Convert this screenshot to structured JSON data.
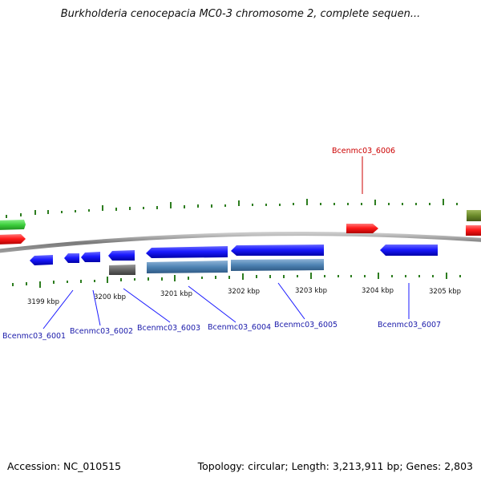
{
  "title": "Burkholderia cenocepacia MC0-3 chromosome 2, complete sequen...",
  "footer": {
    "accession": "Accession: NC_010515",
    "info": "Topology: circular; Length: 3,213,911 bp; Genes: 2,803"
  },
  "colors": {
    "backbone": "#8a8a8a",
    "tick": "#2d7d1f",
    "forward_gene": "#ff1a1a",
    "reverse_gene": "#1a1aff",
    "cds_feature": "#4f84b4",
    "other_feature": "#666666",
    "rna_feature": "#3dcf3d",
    "misc_feature": "#6a8a2a",
    "reverse_label": "#1a1aaa",
    "forward_label": "#cc0000"
  },
  "axis": {
    "ticks_kbp": [
      "3199 kbp",
      "3200 kbp",
      "3201 kbp",
      "3202 kbp",
      "3203 kbp",
      "3204 kbp",
      "3205 kbp"
    ]
  },
  "gene_labels": [
    {
      "text": "Bcenmc03_6001",
      "strand": "reverse"
    },
    {
      "text": "Bcenmc03_6002",
      "strand": "reverse"
    },
    {
      "text": "Bcenmc03_6003",
      "strand": "reverse"
    },
    {
      "text": "Bcenmc03_6004",
      "strand": "reverse"
    },
    {
      "text": "Bcenmc03_6005",
      "strand": "reverse"
    },
    {
      "text": "Bcenmc03_6006",
      "strand": "forward"
    },
    {
      "text": "Bcenmc03_6007",
      "strand": "reverse"
    }
  ]
}
